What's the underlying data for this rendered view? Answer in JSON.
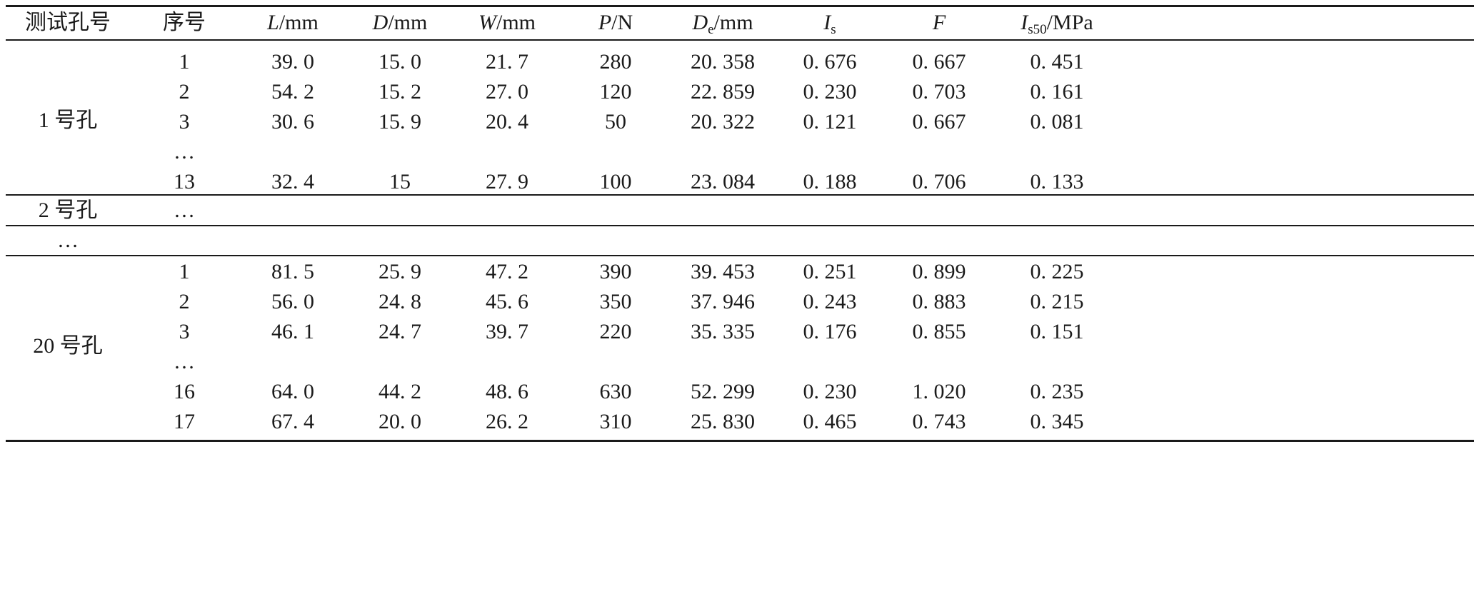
{
  "header": {
    "hole": "测试孔号",
    "seq": "序号",
    "L": {
      "sym": "L",
      "unit": "/mm"
    },
    "D": {
      "sym": "D",
      "unit": "/mm"
    },
    "W": {
      "sym": "W",
      "unit": "/mm"
    },
    "P": {
      "sym": "P",
      "unit": "/N"
    },
    "De": {
      "sym": "D",
      "sub": "e",
      "unit": "/mm"
    },
    "Is": {
      "sym": "I",
      "sub": "s"
    },
    "F": {
      "sym": "F"
    },
    "Is50": {
      "sym": "I",
      "sub": "s50",
      "unit": "/MPa"
    }
  },
  "groups": [
    {
      "hole": "1 号孔",
      "rows": [
        [
          "1",
          "39. 0",
          "15. 0",
          "21. 7",
          "280",
          "20. 358",
          "0. 676",
          "0. 667",
          "0. 451"
        ],
        [
          "2",
          "54. 2",
          "15. 2",
          "27. 0",
          "120",
          "22. 859",
          "0. 230",
          "0. 703",
          "0. 161"
        ],
        [
          "3",
          "30. 6",
          "15. 9",
          "20. 4",
          "50",
          "20. 322",
          "0. 121",
          "0. 667",
          "0. 081"
        ],
        [
          "…",
          "",
          "",
          "",
          "",
          "",
          "",
          "",
          ""
        ],
        [
          "13",
          "32. 4",
          "15",
          "27. 9",
          "100",
          "23. 084",
          "0. 188",
          "0. 706",
          "0. 133"
        ]
      ]
    },
    {
      "hole": "2 号孔",
      "seq": "…"
    },
    {
      "hole": "…"
    },
    {
      "hole": "20 号孔",
      "rows": [
        [
          "1",
          "81. 5",
          "25. 9",
          "47. 2",
          "390",
          "39. 453",
          "0. 251",
          "0. 899",
          "0. 225"
        ],
        [
          "2",
          "56. 0",
          "24. 8",
          "45. 6",
          "350",
          "37. 946",
          "0. 243",
          "0. 883",
          "0. 215"
        ],
        [
          "3",
          "46. 1",
          "24. 7",
          "39. 7",
          "220",
          "35. 335",
          "0. 176",
          "0. 855",
          "0. 151"
        ],
        [
          "…",
          "",
          "",
          "",
          "",
          "",
          "",
          "",
          ""
        ],
        [
          "16",
          "64. 0",
          "44. 2",
          "48. 6",
          "630",
          "52. 299",
          "0. 230",
          "1. 020",
          "0. 235"
        ],
        [
          "17",
          "67. 4",
          "20. 0",
          "26. 2",
          "310",
          "25. 830",
          "0. 465",
          "0. 743",
          "0. 345"
        ]
      ]
    }
  ]
}
